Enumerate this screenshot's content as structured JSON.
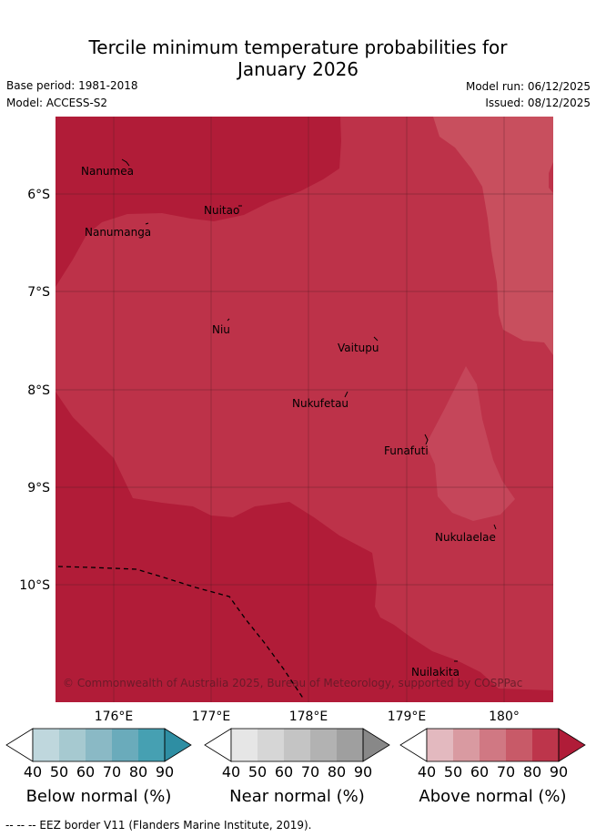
{
  "title": {
    "line1": "Tercile minimum temperature probabilities for",
    "line2": "January 2026"
  },
  "meta": {
    "base_period": "Base period: 1981-2018",
    "model": "Model: ACCESS-S2",
    "model_run": "Model run: 06/12/2025",
    "issued": "Issued: 08/12/2025"
  },
  "map": {
    "longitude_ticks": [
      "176°E",
      "177°E",
      "178°E",
      "179°E",
      "180°"
    ],
    "latitude_ticks": [
      "6°S",
      "7°S",
      "8°S",
      "9°S",
      "10°S"
    ],
    "places": [
      "Nanumea",
      "Nuitao",
      "Nanumanga",
      "Niu",
      "Vaitupu",
      "Nukufetau",
      "Funafuti",
      "Nukulaelae",
      "Nuilakita"
    ],
    "copyright": "© Commonwealth of Australia 2025, Bureau of Meteorology, supported by COSPPac",
    "colors": {
      "above_50": "#d57a83",
      "above_60": "#c84f5e",
      "above_70": "#bd3049",
      "above_80": "#b11b38"
    }
  },
  "legend": {
    "tick_values": [
      "40",
      "50",
      "60",
      "70",
      "80",
      "90"
    ],
    "below": {
      "label": "Below normal (%)",
      "colors": [
        "#ffffff",
        "#bfd7dd",
        "#a6c9d0",
        "#8ab9c5",
        "#6aabbb",
        "#46a0b2",
        "#2e8ea3"
      ]
    },
    "near": {
      "label": "Near normal (%)",
      "colors": [
        "#ffffff",
        "#e6e6e6",
        "#d6d6d6",
        "#c4c4c4",
        "#b2b2b2",
        "#9f9f9f",
        "#888888"
      ]
    },
    "above": {
      "label": "Above normal (%)",
      "colors": [
        "#ffffff",
        "#e3b9bf",
        "#d99aa1",
        "#d07883",
        "#c85a68",
        "#bd354b",
        "#b01c38"
      ]
    }
  },
  "footer": "--  --  -- EEZ border V11 (Flanders Marine Institute, 2019)."
}
